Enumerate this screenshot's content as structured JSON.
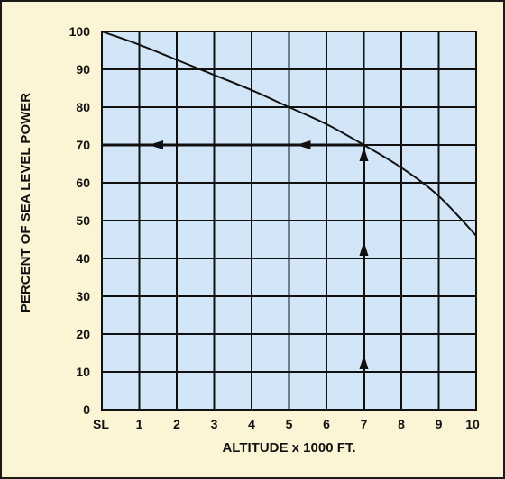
{
  "chart_data": {
    "type": "line",
    "title": "",
    "xlabel": "ALTITUDE x 1000 FT.",
    "ylabel": "PERCENT OF SEA LEVEL POWER",
    "x_tick_labels": [
      "SL",
      "1",
      "2",
      "3",
      "4",
      "5",
      "6",
      "7",
      "8",
      "9",
      "10"
    ],
    "y_tick_labels": [
      "0",
      "10",
      "20",
      "30",
      "40",
      "50",
      "60",
      "70",
      "80",
      "90",
      "100"
    ],
    "xlim": [
      0,
      10
    ],
    "ylim": [
      0,
      100
    ],
    "grid": true,
    "series": [
      {
        "x": [
          0,
          1,
          2,
          3,
          4,
          5,
          6,
          7,
          8,
          9,
          10
        ],
        "y": [
          100,
          96.5,
          92.5,
          88.5,
          84.5,
          80,
          75.5,
          70,
          64,
          56.5,
          46
        ]
      }
    ],
    "annotation": {
      "altitude": 7,
      "power_percent": 70
    },
    "colors": {
      "plot_background": "#d2e6f7",
      "page_background": "#fcf5d5",
      "ink": "#111111"
    }
  }
}
